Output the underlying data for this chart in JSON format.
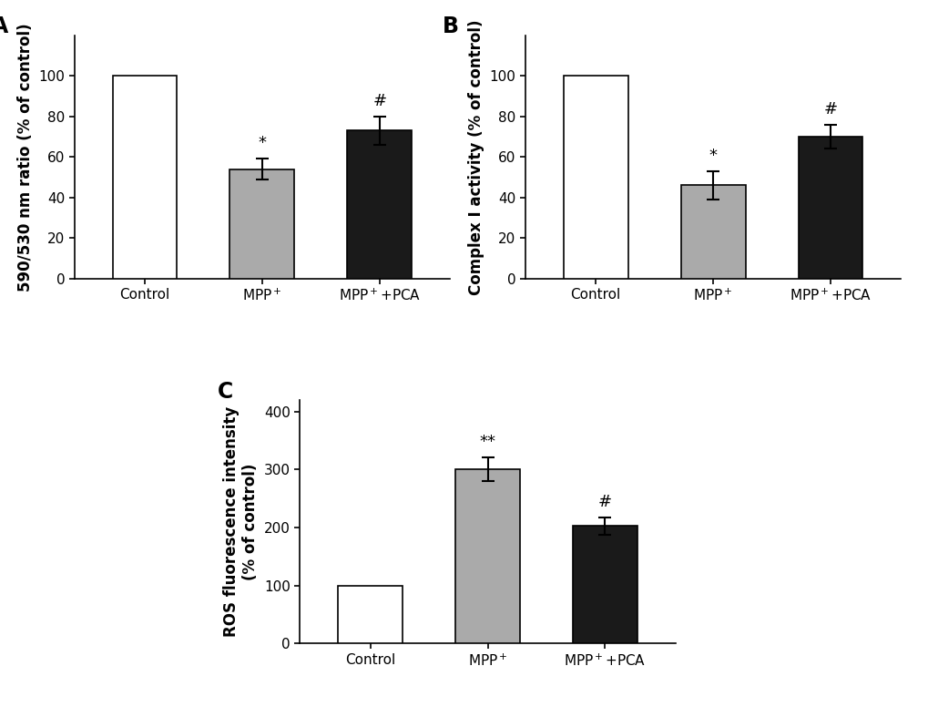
{
  "panels": [
    {
      "label": "A",
      "categories": [
        "Control",
        "MPP$^+$",
        "MPP$^+$+PCA"
      ],
      "values": [
        100,
        54,
        73
      ],
      "errors": [
        0,
        5,
        7
      ],
      "colors": [
        "#ffffff",
        "#aaaaaa",
        "#1a1a1a"
      ],
      "ylabel": "590/530 nm ratio (% of control)",
      "ylim": [
        0,
        120
      ],
      "yticks": [
        0,
        20,
        40,
        60,
        80,
        100
      ],
      "significance": [
        "",
        "*",
        "#"
      ],
      "sig_fontsize": 13
    },
    {
      "label": "B",
      "categories": [
        "Control",
        "MPP$^+$",
        "MPP$^+$+PCA"
      ],
      "values": [
        100,
        46,
        70
      ],
      "errors": [
        0,
        7,
        6
      ],
      "colors": [
        "#ffffff",
        "#aaaaaa",
        "#1a1a1a"
      ],
      "ylabel": "Complex I activity (% of control)",
      "ylim": [
        0,
        120
      ],
      "yticks": [
        0,
        20,
        40,
        60,
        80,
        100
      ],
      "significance": [
        "",
        "*",
        "#"
      ],
      "sig_fontsize": 13
    },
    {
      "label": "C",
      "categories": [
        "Control",
        "MPP$^+$",
        "MPP$^+$+PCA"
      ],
      "values": [
        100,
        301,
        203
      ],
      "errors": [
        0,
        20,
        15
      ],
      "colors": [
        "#ffffff",
        "#aaaaaa",
        "#1a1a1a"
      ],
      "ylabel": "ROS fluorescence intensity\n(% of control)",
      "ylim": [
        0,
        420
      ],
      "yticks": [
        0,
        100,
        200,
        300,
        400
      ],
      "significance": [
        "",
        "**",
        "#"
      ],
      "sig_fontsize": 13
    }
  ],
  "bar_width": 0.55,
  "edgecolor": "#000000",
  "tick_fontsize": 11,
  "label_fontsize": 12,
  "panel_label_fontsize": 17,
  "background_color": "#ffffff",
  "capsize": 5,
  "error_linewidth": 1.5,
  "error_color": "#000000"
}
